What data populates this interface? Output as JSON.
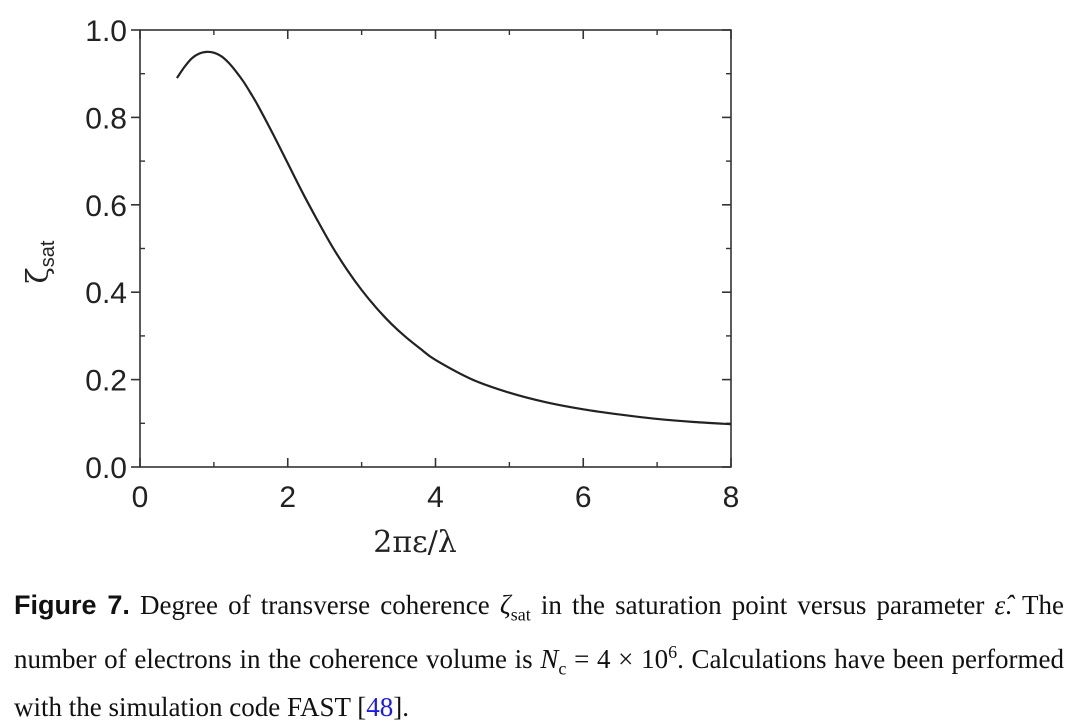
{
  "chart_data": {
    "type": "line",
    "xlabel": "2πε/λ",
    "ylabel": "ζ_sat",
    "ylabel_main": "ζ",
    "ylabel_sub": "sat",
    "xlim": [
      0,
      8
    ],
    "ylim": [
      0.0,
      1.0
    ],
    "x_ticks": [
      "0",
      "2",
      "4",
      "6",
      "8"
    ],
    "y_ticks": [
      "0.0",
      "0.2",
      "0.4",
      "0.6",
      "0.8",
      "1.0"
    ],
    "series": [
      {
        "x": [
          0.5,
          0.6,
          0.7,
          0.8,
          0.9,
          1.0,
          1.1,
          1.2,
          1.3,
          1.4,
          1.5,
          1.6,
          1.8,
          2.0,
          2.2,
          2.4,
          2.6,
          2.8,
          3.0,
          3.2,
          3.4,
          3.6,
          3.8,
          4.0,
          4.5,
          5.0,
          5.5,
          6.0,
          6.5,
          7.0,
          7.5,
          8.0
        ],
        "y": [
          0.89,
          0.915,
          0.935,
          0.946,
          0.95,
          0.948,
          0.94,
          0.925,
          0.905,
          0.882,
          0.855,
          0.826,
          0.762,
          0.695,
          0.628,
          0.565,
          0.505,
          0.452,
          0.405,
          0.364,
          0.328,
          0.297,
          0.27,
          0.245,
          0.2,
          0.17,
          0.148,
          0.132,
          0.12,
          0.11,
          0.103,
          0.098
        ]
      }
    ]
  },
  "caption": {
    "label": "Figure 7.",
    "line1_text": " Degree of transverse coherence ",
    "zeta": "ζ",
    "zeta_sub": "sat",
    "line1_text2": " in the saturation point versus parameter ",
    "eps_hat": "ε̂",
    "line2_text": ". The number of electrons in the coherence volume is ",
    "nc": "N",
    "nc_sub": "c",
    "eq": " = 4 × 10",
    "exp": "6",
    "line2_end": ".",
    "line3_text": " Calculations have been performed with the simulation code FAST [",
    "ref": "48",
    "line3_end": "]."
  }
}
